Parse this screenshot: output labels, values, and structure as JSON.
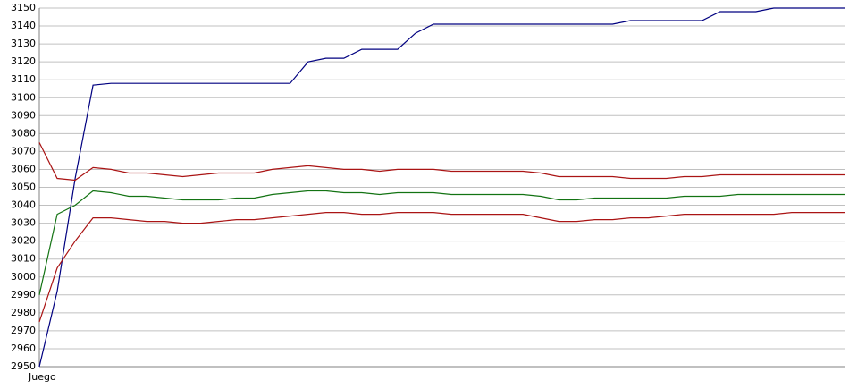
{
  "chart_data": {
    "type": "line",
    "categories": [
      "Juego",
      null,
      null,
      null,
      null,
      null,
      null,
      null,
      null,
      null,
      null,
      null,
      null,
      null,
      null,
      null,
      null,
      null,
      null,
      null,
      null,
      null,
      null,
      null,
      null,
      null,
      null,
      null,
      null,
      null,
      null,
      null,
      null,
      null,
      null,
      null,
      null,
      null,
      null,
      null,
      null,
      null,
      null,
      null,
      null,
      null
    ],
    "series": [
      {
        "color": "#000080",
        "values": [
          2950,
          2992,
          3055,
          3107,
          3108,
          3108,
          3108,
          3108,
          3108,
          3108,
          3108,
          3108,
          3108,
          3108,
          3108,
          3120,
          3122,
          3122,
          3127,
          3127,
          3127,
          3136,
          3141,
          3141,
          3141,
          3141,
          3141,
          3141,
          3141,
          3141,
          3141,
          3141,
          3141,
          3143,
          3143,
          3143,
          3143,
          3143,
          3148,
          3148,
          3148,
          3150,
          3150,
          3150,
          3150,
          3150
        ]
      },
      {
        "color": "#aa1414",
        "values": [
          3075,
          3055,
          3054,
          3061,
          3060,
          3058,
          3058,
          3057,
          3056,
          3057,
          3058,
          3058,
          3058,
          3060,
          3061,
          3062,
          3061,
          3060,
          3060,
          3059,
          3060,
          3060,
          3060,
          3059,
          3059,
          3059,
          3059,
          3059,
          3058,
          3056,
          3056,
          3056,
          3056,
          3055,
          3055,
          3055,
          3056,
          3056,
          3057,
          3057,
          3057,
          3057,
          3057,
          3057,
          3057,
          3057
        ]
      },
      {
        "color": "#137313",
        "values": [
          2990,
          3035,
          3040,
          3048,
          3047,
          3045,
          3045,
          3044,
          3043,
          3043,
          3043,
          3044,
          3044,
          3046,
          3047,
          3048,
          3048,
          3047,
          3047,
          3046,
          3047,
          3047,
          3047,
          3046,
          3046,
          3046,
          3046,
          3046,
          3045,
          3043,
          3043,
          3044,
          3044,
          3044,
          3044,
          3044,
          3045,
          3045,
          3045,
          3046,
          3046,
          3046,
          3046,
          3046,
          3046,
          3046
        ]
      },
      {
        "color": "#aa1414",
        "values": [
          2975,
          3005,
          3020,
          3033,
          3033,
          3032,
          3031,
          3031,
          3030,
          3030,
          3031,
          3032,
          3032,
          3033,
          3034,
          3035,
          3036,
          3036,
          3035,
          3035,
          3036,
          3036,
          3036,
          3035,
          3035,
          3035,
          3035,
          3035,
          3033,
          3031,
          3031,
          3032,
          3032,
          3033,
          3033,
          3034,
          3035,
          3035,
          3035,
          3035,
          3035,
          3035,
          3036,
          3036,
          3036,
          3036
        ]
      }
    ],
    "ylim": [
      2950,
      3150
    ],
    "yticks": [
      2950,
      2960,
      2970,
      2980,
      2990,
      3000,
      3010,
      3020,
      3030,
      3040,
      3050,
      3060,
      3070,
      3080,
      3090,
      3100,
      3110,
      3120,
      3130,
      3140,
      3150
    ],
    "grid": true
  }
}
